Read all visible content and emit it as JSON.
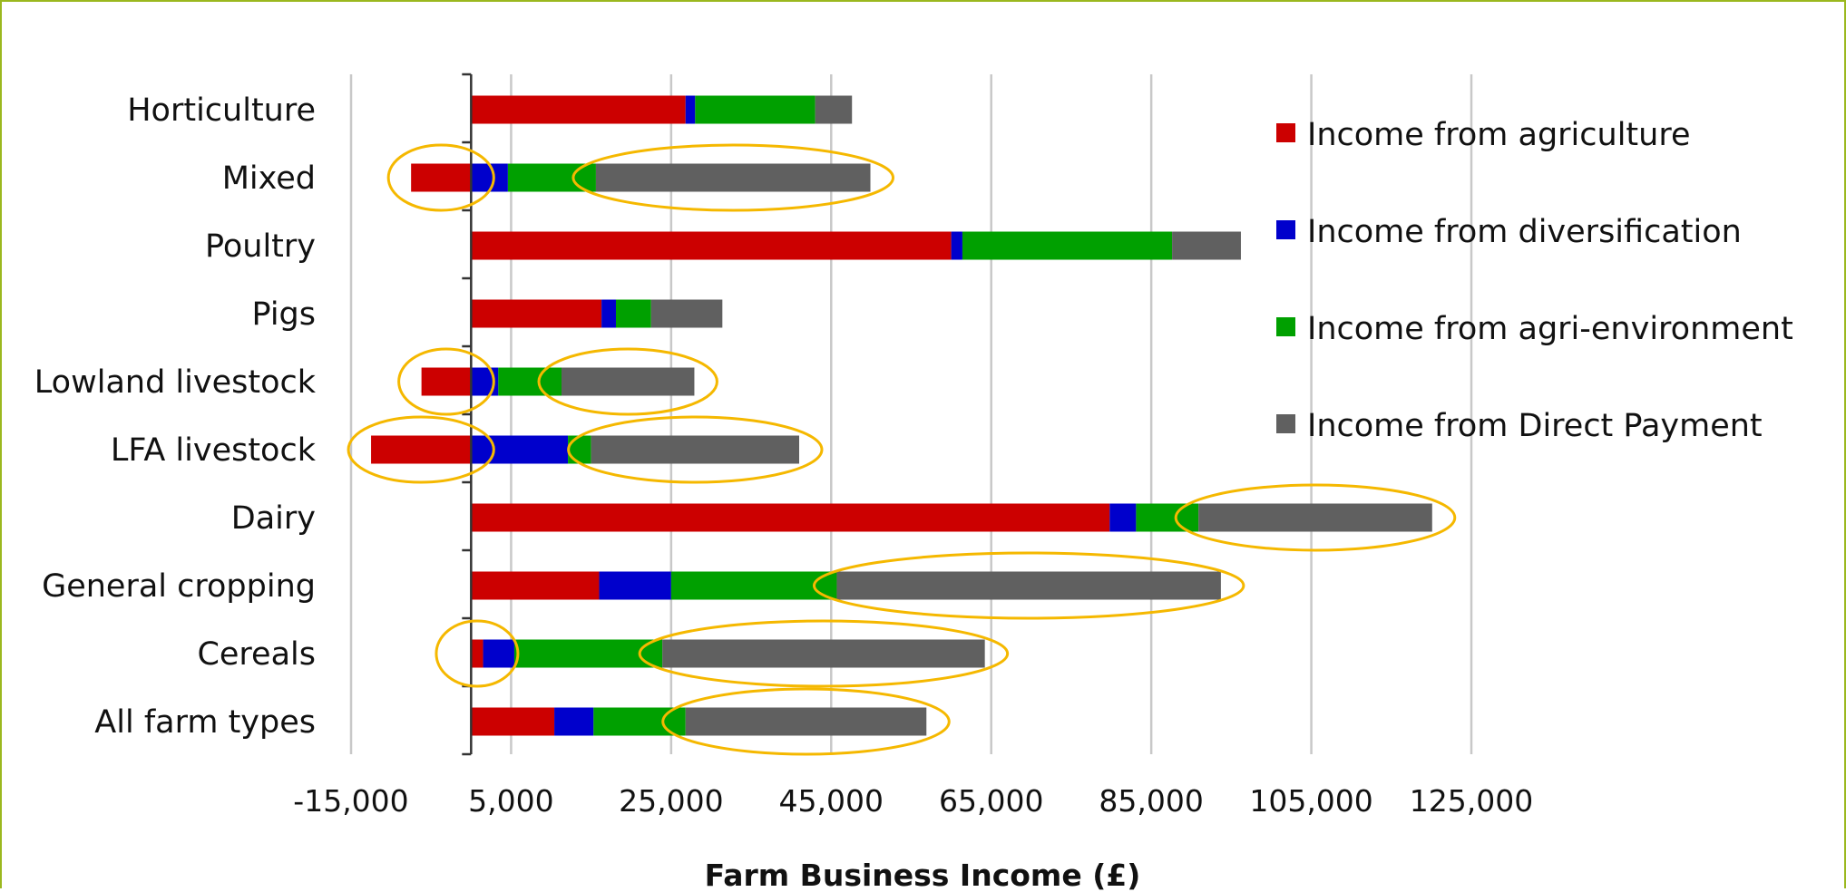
{
  "chart_data": {
    "type": "bar",
    "orientation": "horizontal",
    "stacked": true,
    "title": "",
    "xlabel": "Farm Business Income (£)",
    "ylabel": "",
    "xlim": [
      -15000,
      135000
    ],
    "xticks": [
      -15000,
      5000,
      25000,
      45000,
      65000,
      85000,
      105000,
      125000
    ],
    "xtick_labels": [
      "-15,000",
      "5,000",
      "25,000",
      "45,000",
      "65,000",
      "85,000",
      "105,000",
      "125,000"
    ],
    "grid": "vertical",
    "legend_position": "top-right",
    "categories": [
      "Horticulture",
      "Mixed",
      "Poultry",
      "Pigs",
      "Lowland livestock",
      "LFA livestock",
      "Dairy",
      "General cropping",
      "Cereals",
      "All farm types"
    ],
    "series": [
      {
        "name": "Income from agriculture",
        "color": "#cc0000",
        "values": [
          26800,
          -7500,
          60000,
          16300,
          -6200,
          -12500,
          79800,
          16000,
          1500,
          10400
        ]
      },
      {
        "name": "Income from diversification",
        "color": "#0000cc",
        "values": [
          1200,
          4600,
          1400,
          1800,
          3400,
          12100,
          3300,
          9000,
          3900,
          4900
        ]
      },
      {
        "name": "Income from agri-environment",
        "color": "#00a000",
        "values": [
          15000,
          11000,
          26200,
          4400,
          7900,
          2900,
          7800,
          20700,
          18500,
          11500
        ]
      },
      {
        "name": "Income from Direct Payment",
        "color": "#606060",
        "values": [
          4600,
          34300,
          8600,
          8900,
          16600,
          26000,
          29200,
          48000,
          40300,
          30100
        ]
      }
    ],
    "annotations": {
      "type": "ellipse",
      "color": "#f5b800",
      "highlighted": [
        {
          "category": "Mixed",
          "series": "Income from agriculture"
        },
        {
          "category": "Mixed",
          "series": "Income from Direct Payment"
        },
        {
          "category": "Lowland livestock",
          "series": "Income from agriculture"
        },
        {
          "category": "Lowland livestock",
          "series": "Income from Direct Payment"
        },
        {
          "category": "LFA livestock",
          "series": "Income from agriculture"
        },
        {
          "category": "LFA livestock",
          "series": "Income from Direct Payment"
        },
        {
          "category": "Dairy",
          "series": "Income from Direct Payment"
        },
        {
          "category": "General cropping",
          "series": "Income from Direct Payment"
        },
        {
          "category": "Cereals",
          "series": "Income from agriculture"
        },
        {
          "category": "Cereals",
          "series": "Income from Direct Payment"
        },
        {
          "category": "All farm types",
          "series": "Income from Direct Payment"
        }
      ]
    }
  },
  "colors": {
    "frame_border": "#9bb81e",
    "gridline": "#c8c8c8",
    "axis": "#333333",
    "highlight": "#f5b800"
  }
}
